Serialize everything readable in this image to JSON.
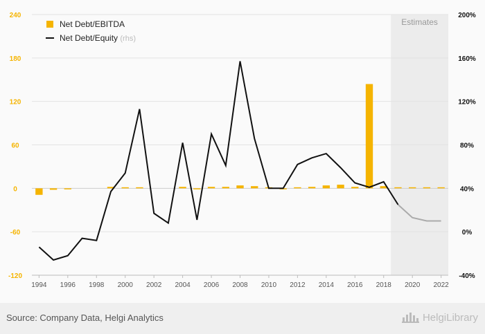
{
  "chart_data": {
    "type": "bar+line",
    "x": [
      1994,
      1995,
      1996,
      1997,
      1998,
      1999,
      2000,
      2001,
      2002,
      2003,
      2004,
      2005,
      2006,
      2007,
      2008,
      2009,
      2010,
      2011,
      2012,
      2013,
      2014,
      2015,
      2016,
      2017,
      2018,
      2019,
      2020,
      2021,
      2022
    ],
    "series": [
      {
        "name": "Net Debt/EBITDA",
        "type": "bar",
        "axis": "left",
        "color": "#f5b400",
        "values": [
          -9,
          -2,
          -1,
          null,
          null,
          2,
          1,
          1,
          null,
          null,
          2,
          -1,
          2,
          2,
          4,
          3,
          1,
          -1,
          1,
          2,
          4,
          5,
          2,
          144,
          3,
          1,
          0.5,
          0.5,
          0.5
        ]
      },
      {
        "name": "Net Debt/Equity",
        "label_suffix": "(rhs)",
        "type": "line",
        "axis": "right",
        "color": "#111111",
        "estimate_color": "#aaaaaa",
        "values": [
          -14,
          -26,
          -22,
          -6,
          -8,
          37,
          54,
          113,
          17,
          8,
          82,
          11,
          90,
          61,
          157,
          86,
          40,
          40,
          62,
          68,
          72,
          59,
          45,
          41,
          46,
          25,
          13,
          10,
          10
        ]
      }
    ],
    "estimates_start": 2019,
    "estimates_label": "Estimates",
    "y_left": {
      "ticks": [
        -120,
        -60,
        0,
        60,
        120,
        180,
        240
      ],
      "labels": [
        "-120",
        "-60",
        "0",
        "60",
        "120",
        "180",
        "240"
      ],
      "color": "#f5b400"
    },
    "y_right": {
      "ticks": [
        -40,
        0,
        40,
        80,
        120,
        160,
        200
      ],
      "labels": [
        "-40%",
        "0%",
        "40%",
        "80%",
        "120%",
        "160%",
        "200%"
      ]
    },
    "x_ticks": [
      1994,
      1996,
      1998,
      2000,
      2002,
      2004,
      2006,
      2008,
      2010,
      2012,
      2014,
      2016,
      2018,
      2020,
      2022
    ],
    "legend_position": "top-left",
    "grid": true
  },
  "footer": {
    "source": "Source: Company Data, Helgi Analytics",
    "brand": "HelgiLibrary"
  },
  "icons": {
    "brand_icon": "helgi-logo-icon"
  }
}
